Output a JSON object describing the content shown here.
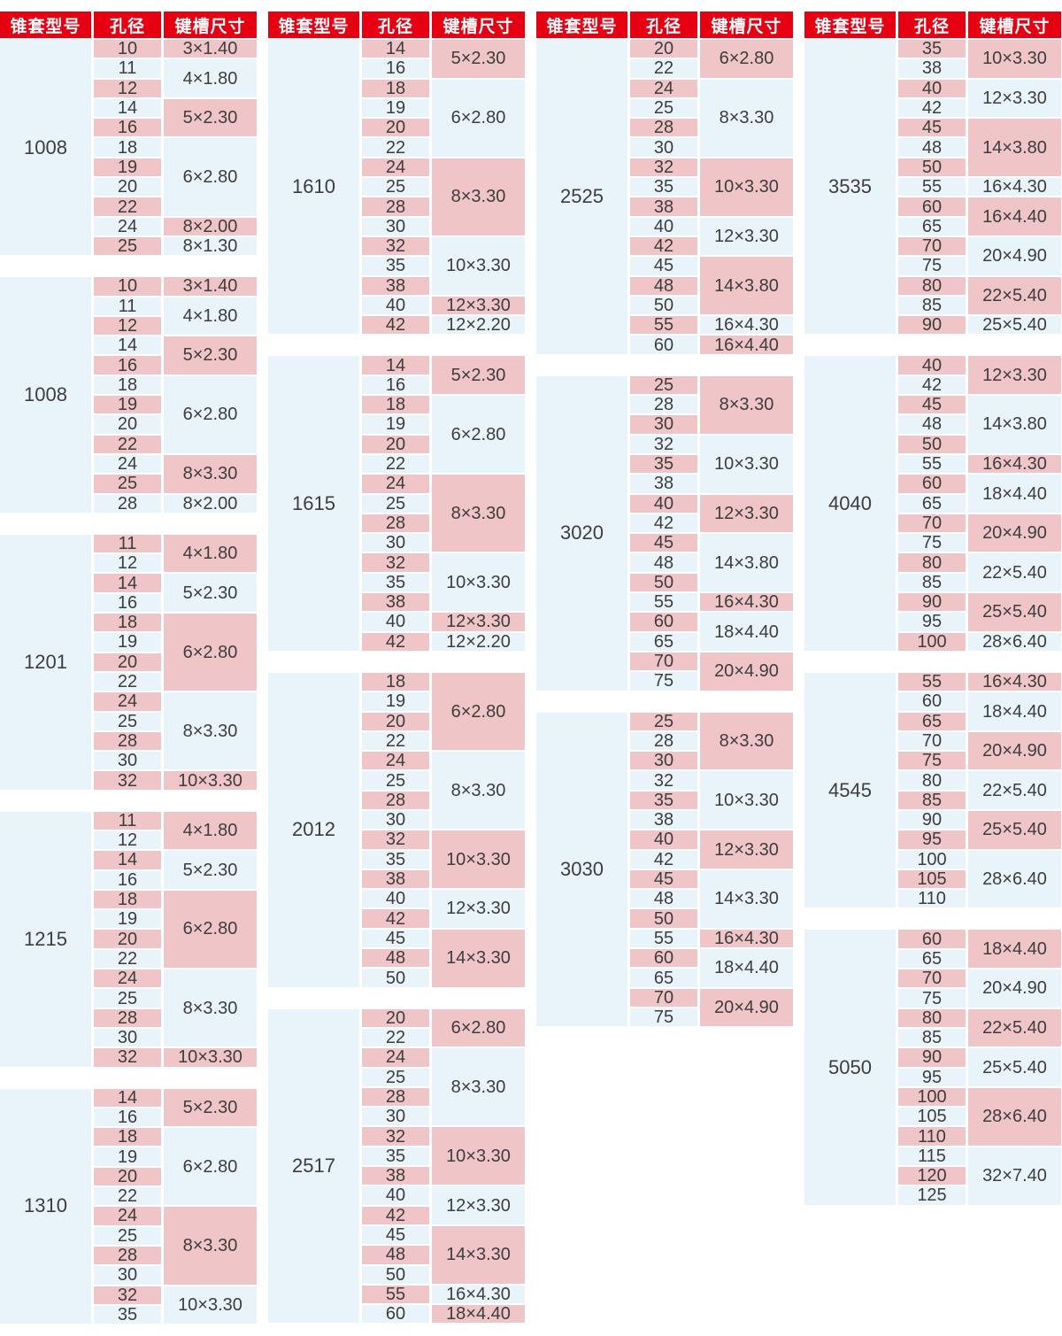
{
  "colors": {
    "header_bg": "#e60012",
    "pink": "#f0c5c8",
    "blue": "#e9f4fa",
    "header_text": "#ffffff",
    "body_text": "#3d3d3d"
  },
  "header": {
    "model": "锥套型号",
    "bore": "孔径",
    "keyway": "键槽尺寸"
  },
  "columns": [
    {
      "sections": [
        {
          "model": "1008",
          "groups": [
            {
              "keyway": "3×1.40",
              "bores": [
                "10"
              ]
            },
            {
              "keyway": "4×1.80",
              "bores": [
                "11",
                "12"
              ]
            },
            {
              "keyway": "5×2.30",
              "bores": [
                "14",
                "16"
              ]
            },
            {
              "keyway": "6×2.80",
              "bores": [
                "18",
                "19",
                "20",
                "22"
              ]
            },
            {
              "keyway": "8×2.00",
              "bores": [
                "24"
              ]
            },
            {
              "keyway": "8×1.30",
              "bores": [
                "25"
              ]
            }
          ]
        },
        {
          "model": "1008",
          "groups": [
            {
              "keyway": "3×1.40",
              "bores": [
                "10"
              ]
            },
            {
              "keyway": "4×1.80",
              "bores": [
                "11",
                "12"
              ]
            },
            {
              "keyway": "5×2.30",
              "bores": [
                "14",
                "16"
              ]
            },
            {
              "keyway": "6×2.80",
              "bores": [
                "18",
                "19",
                "20",
                "22"
              ]
            },
            {
              "keyway": "8×3.30",
              "bores": [
                "24",
                "25"
              ]
            },
            {
              "keyway": "8×2.00",
              "bores": [
                "28"
              ]
            }
          ]
        },
        {
          "model": "1201",
          "groups": [
            {
              "keyway": "4×1.80",
              "bores": [
                "11",
                "12"
              ]
            },
            {
              "keyway": "5×2.30",
              "bores": [
                "14",
                "16"
              ]
            },
            {
              "keyway": "6×2.80",
              "bores": [
                "18",
                "19",
                "20",
                "22"
              ]
            },
            {
              "keyway": "8×3.30",
              "bores": [
                "24",
                "25",
                "28",
                "30"
              ]
            },
            {
              "keyway": "10×3.30",
              "bores": [
                "32"
              ]
            }
          ]
        },
        {
          "model": "1215",
          "groups": [
            {
              "keyway": "4×1.80",
              "bores": [
                "11",
                "12"
              ]
            },
            {
              "keyway": "5×2.30",
              "bores": [
                "14",
                "16"
              ]
            },
            {
              "keyway": "6×2.80",
              "bores": [
                "18",
                "19",
                "20",
                "22"
              ]
            },
            {
              "keyway": "8×3.30",
              "bores": [
                "24",
                "25",
                "28",
                "30"
              ]
            },
            {
              "keyway": "10×3.30",
              "bores": [
                "32"
              ]
            }
          ]
        },
        {
          "model": "1310",
          "groups": [
            {
              "keyway": "5×2.30",
              "bores": [
                "14",
                "16"
              ]
            },
            {
              "keyway": "6×2.80",
              "bores": [
                "18",
                "19",
                "20",
                "22"
              ]
            },
            {
              "keyway": "8×3.30",
              "bores": [
                "24",
                "25",
                "28",
                "30"
              ]
            },
            {
              "keyway": "10×3.30",
              "bores": [
                "32",
                "35"
              ]
            }
          ]
        }
      ]
    },
    {
      "sections": [
        {
          "model": "1610",
          "groups": [
            {
              "keyway": "5×2.30",
              "bores": [
                "14",
                "16"
              ]
            },
            {
              "keyway": "6×2.80",
              "bores": [
                "18",
                "19",
                "20",
                "22"
              ]
            },
            {
              "keyway": "8×3.30",
              "bores": [
                "24",
                "25",
                "28",
                "30"
              ]
            },
            {
              "keyway": "10×3.30",
              "bores": [
                "32",
                "35",
                "38"
              ]
            },
            {
              "keyway": "12×3.30",
              "bores": [
                "40"
              ]
            },
            {
              "keyway": "12×2.20",
              "bores": [
                "42"
              ]
            }
          ]
        },
        {
          "model": "1615",
          "groups": [
            {
              "keyway": "5×2.30",
              "bores": [
                "14",
                "16"
              ]
            },
            {
              "keyway": "6×2.80",
              "bores": [
                "18",
                "19",
                "20",
                "22"
              ]
            },
            {
              "keyway": "8×3.30",
              "bores": [
                "24",
                "25",
                "28",
                "30"
              ]
            },
            {
              "keyway": "10×3.30",
              "bores": [
                "32",
                "35",
                "38"
              ]
            },
            {
              "keyway": "12×3.30",
              "bores": [
                "40"
              ]
            },
            {
              "keyway": "12×2.20",
              "bores": [
                "42"
              ]
            }
          ]
        },
        {
          "model": "2012",
          "groups": [
            {
              "keyway": "6×2.80",
              "bores": [
                "18",
                "19",
                "20",
                "22"
              ]
            },
            {
              "keyway": "8×3.30",
              "bores": [
                "24",
                "25",
                "28",
                "30"
              ]
            },
            {
              "keyway": "10×3.30",
              "bores": [
                "32",
                "35",
                "38"
              ]
            },
            {
              "keyway": "12×3.30",
              "bores": [
                "40",
                "42"
              ]
            },
            {
              "keyway": "14×3.30",
              "bores": [
                "45",
                "48",
                "50"
              ]
            }
          ]
        },
        {
          "model": "2517",
          "groups": [
            {
              "keyway": "6×2.80",
              "bores": [
                "20",
                "22"
              ]
            },
            {
              "keyway": "8×3.30",
              "bores": [
                "24",
                "25",
                "28",
                "30"
              ]
            },
            {
              "keyway": "10×3.30",
              "bores": [
                "32",
                "35",
                "38"
              ]
            },
            {
              "keyway": "12×3.30",
              "bores": [
                "40",
                "42"
              ]
            },
            {
              "keyway": "14×3.30",
              "bores": [
                "45",
                "48",
                "50"
              ]
            },
            {
              "keyway": "16×4.30",
              "bores": [
                "55"
              ]
            },
            {
              "keyway": "18×4.40",
              "bores": [
                "60"
              ]
            }
          ]
        }
      ]
    },
    {
      "sections": [
        {
          "model": "2525",
          "groups": [
            {
              "keyway": "6×2.80",
              "bores": [
                "20",
                "22"
              ]
            },
            {
              "keyway": "8×3.30",
              "bores": [
                "24",
                "25",
                "28",
                "30"
              ]
            },
            {
              "keyway": "10×3.30",
              "bores": [
                "32",
                "35",
                "38"
              ]
            },
            {
              "keyway": "12×3.30",
              "bores": [
                "40",
                "42"
              ]
            },
            {
              "keyway": "14×3.80",
              "bores": [
                "45",
                "48",
                "50"
              ]
            },
            {
              "keyway": "16×4.30",
              "bores": [
                "55"
              ]
            },
            {
              "keyway": "16×4.40",
              "bores": [
                "60"
              ]
            }
          ]
        },
        {
          "model": "3020",
          "groups": [
            {
              "keyway": "8×3.30",
              "bores": [
                "25",
                "28",
                "30"
              ]
            },
            {
              "keyway": "10×3.30",
              "bores": [
                "32",
                "35",
                "38"
              ]
            },
            {
              "keyway": "12×3.30",
              "bores": [
                "40",
                "42"
              ]
            },
            {
              "keyway": "14×3.80",
              "bores": [
                "45",
                "48",
                "50"
              ]
            },
            {
              "keyway": "16×4.30",
              "bores": [
                "55"
              ]
            },
            {
              "keyway": "18×4.40",
              "bores": [
                "60",
                "65"
              ]
            },
            {
              "keyway": "20×4.90",
              "bores": [
                "70",
                "75"
              ]
            }
          ]
        },
        {
          "model": "3030",
          "groups": [
            {
              "keyway": "8×3.30",
              "bores": [
                "25",
                "28",
                "30"
              ]
            },
            {
              "keyway": "10×3.30",
              "bores": [
                "32",
                "35",
                "38"
              ]
            },
            {
              "keyway": "12×3.30",
              "bores": [
                "40",
                "42"
              ]
            },
            {
              "keyway": "14×3.30",
              "bores": [
                "45",
                "48",
                "50"
              ]
            },
            {
              "keyway": "16×4.30",
              "bores": [
                "55"
              ]
            },
            {
              "keyway": "18×4.40",
              "bores": [
                "60",
                "65"
              ]
            },
            {
              "keyway": "20×4.90",
              "bores": [
                "70",
                "75"
              ]
            }
          ]
        }
      ]
    },
    {
      "sections": [
        {
          "model": "3535",
          "groups": [
            {
              "keyway": "10×3.30",
              "bores": [
                "35",
                "38"
              ]
            },
            {
              "keyway": "12×3.30",
              "bores": [
                "40",
                "42"
              ]
            },
            {
              "keyway": "14×3.80",
              "bores": [
                "45",
                "48",
                "50"
              ]
            },
            {
              "keyway": "16×4.30",
              "bores": [
                "55"
              ]
            },
            {
              "keyway": "16×4.40",
              "bores": [
                "60",
                "65"
              ]
            },
            {
              "keyway": "20×4.90",
              "bores": [
                "70",
                "75"
              ]
            },
            {
              "keyway": "22×5.40",
              "bores": [
                "80",
                "85"
              ]
            },
            {
              "keyway": "25×5.40",
              "bores": [
                "90"
              ]
            }
          ]
        },
        {
          "model": "4040",
          "groups": [
            {
              "keyway": "12×3.30",
              "bores": [
                "40",
                "42"
              ]
            },
            {
              "keyway": "14×3.80",
              "bores": [
                "45",
                "48",
                "50"
              ]
            },
            {
              "keyway": "16×4.30",
              "bores": [
                "55"
              ]
            },
            {
              "keyway": "18×4.40",
              "bores": [
                "60",
                "65"
              ]
            },
            {
              "keyway": "20×4.90",
              "bores": [
                "70",
                "75"
              ]
            },
            {
              "keyway": "22×5.40",
              "bores": [
                "80",
                "85"
              ]
            },
            {
              "keyway": "25×5.40",
              "bores": [
                "90",
                "95"
              ]
            },
            {
              "keyway": "28×6.40",
              "bores": [
                "100"
              ]
            }
          ]
        },
        {
          "model": "4545",
          "groups": [
            {
              "keyway": "16×4.30",
              "bores": [
                "55"
              ]
            },
            {
              "keyway": "18×4.40",
              "bores": [
                "60",
                "65"
              ]
            },
            {
              "keyway": "20×4.90",
              "bores": [
                "70",
                "75"
              ]
            },
            {
              "keyway": "22×5.40",
              "bores": [
                "80",
                "85"
              ]
            },
            {
              "keyway": "25×5.40",
              "bores": [
                "90",
                "95"
              ]
            },
            {
              "keyway": "28×6.40",
              "bores": [
                "100",
                "105",
                "110"
              ]
            }
          ]
        },
        {
          "model": "5050",
          "groups": [
            {
              "keyway": "18×4.40",
              "bores": [
                "60",
                "65"
              ]
            },
            {
              "keyway": "20×4.90",
              "bores": [
                "70",
                "75"
              ]
            },
            {
              "keyway": "22×5.40",
              "bores": [
                "80",
                "85"
              ]
            },
            {
              "keyway": "25×5.40",
              "bores": [
                "90",
                "95"
              ]
            },
            {
              "keyway": "28×6.40",
              "bores": [
                "100",
                "105",
                "110"
              ]
            },
            {
              "keyway": "32×7.40",
              "bores": [
                "115",
                "120",
                "125"
              ]
            }
          ]
        }
      ]
    }
  ]
}
